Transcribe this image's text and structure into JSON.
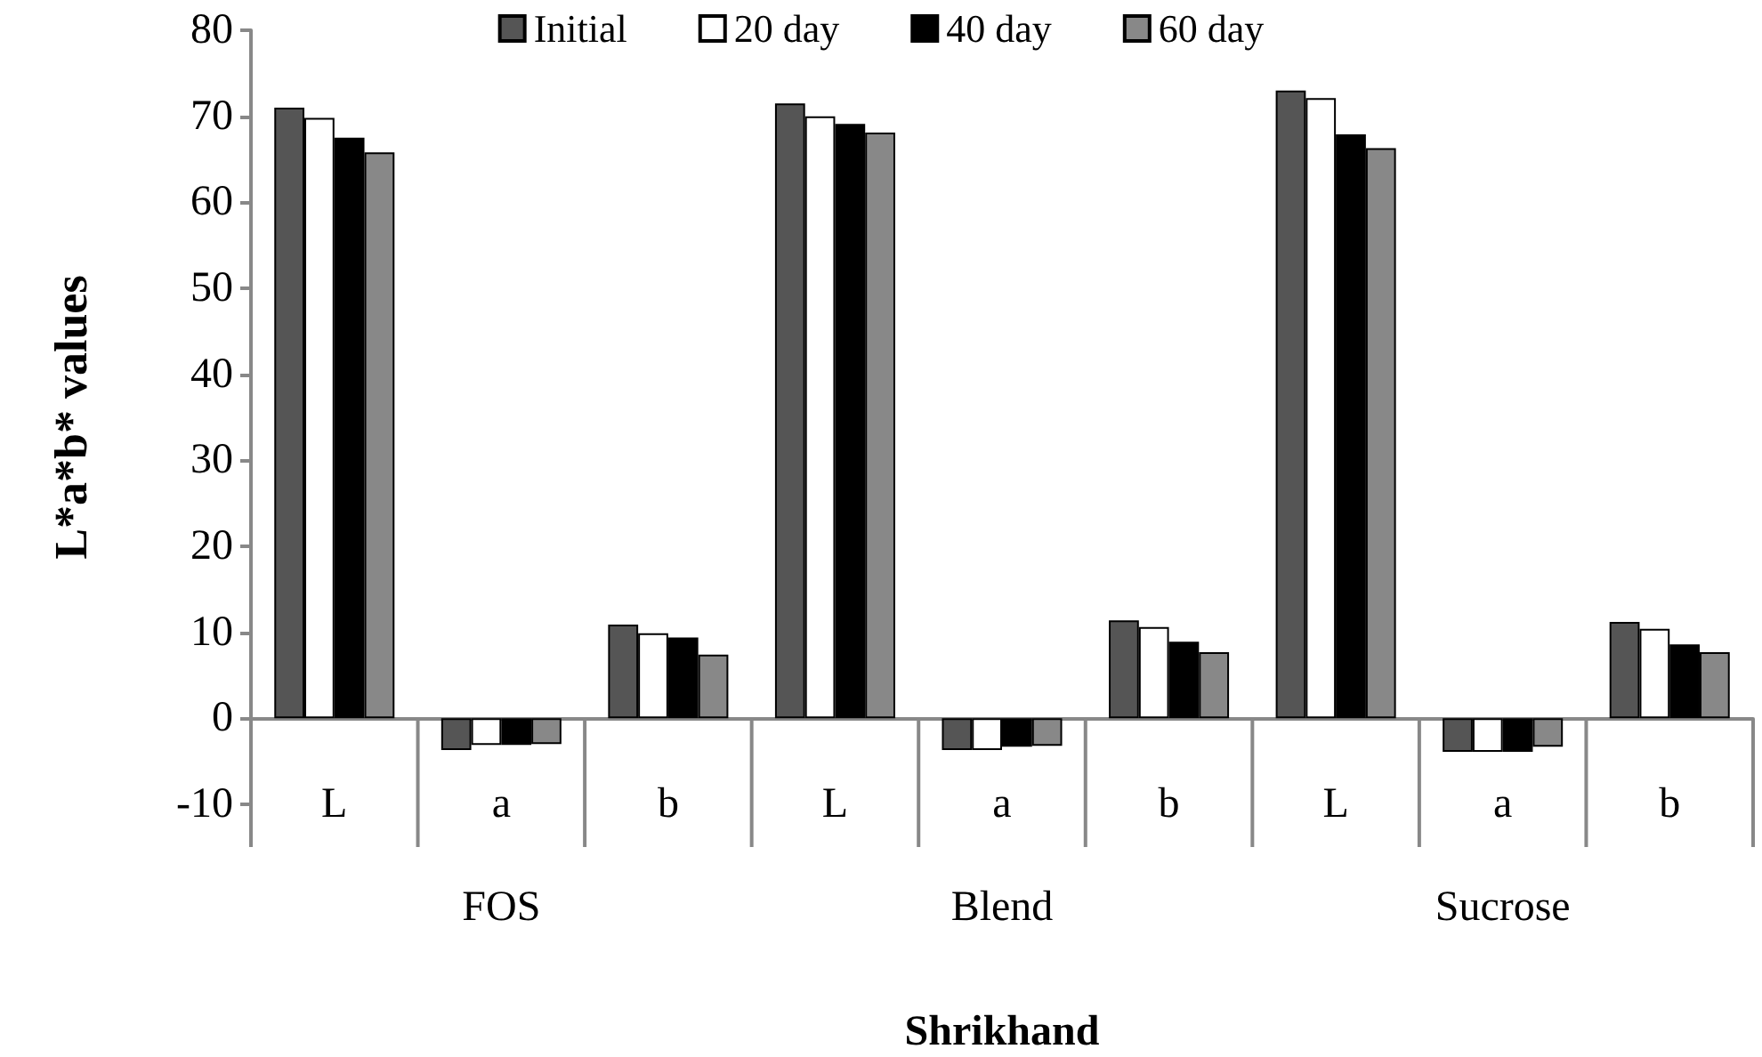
{
  "chart_data": {
    "type": "bar",
    "xlabel": "Shrikhand",
    "ylabel": "L*a*b* values",
    "categories": [
      "L",
      "a",
      "b",
      "L",
      "a",
      "b",
      "L",
      "a",
      "b"
    ],
    "annotations": [
      "FOS",
      "Blend",
      "Sucrose"
    ],
    "series": [
      {
        "name": "Initial",
        "color": "#555555",
        "values": [
          71.0,
          -3.7,
          10.9,
          71.5,
          -3.7,
          11.4,
          73.0,
          -3.9,
          11.2
        ]
      },
      {
        "name": "20 day",
        "color": "#ffffff",
        "values": [
          69.8,
          -3.1,
          9.9,
          70.0,
          -3.7,
          10.6,
          72.1,
          -3.9,
          10.4
        ]
      },
      {
        "name": "40 day",
        "color": "#000000",
        "values": [
          67.5,
          -3.1,
          9.4,
          69.1,
          -3.3,
          8.9,
          67.9,
          -3.9,
          8.6
        ]
      },
      {
        "name": "60 day",
        "color": "#888888",
        "values": [
          65.8,
          -3.0,
          7.4,
          68.1,
          -3.2,
          7.7,
          66.3,
          -3.3,
          7.7
        ]
      }
    ],
    "ylim": [
      -10,
      80
    ],
    "yticks": [
      -10,
      0,
      10,
      20,
      30,
      40,
      50,
      60,
      70,
      80
    ],
    "legend": "top"
  }
}
